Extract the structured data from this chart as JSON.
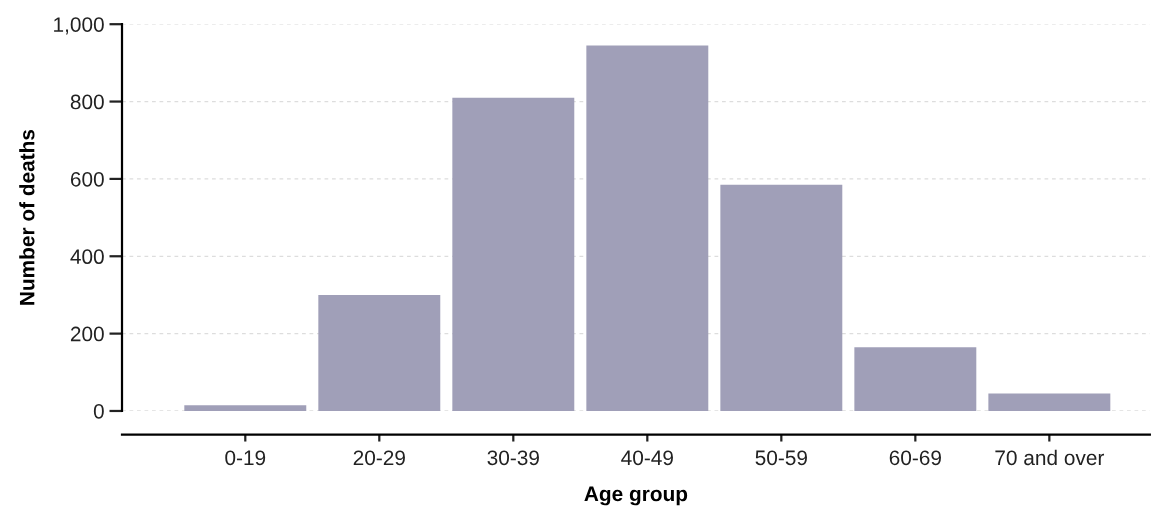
{
  "chart_data": {
    "type": "bar",
    "xlabel": "Age group",
    "ylabel": "Number of deaths",
    "categories": [
      "0-19",
      "20-29",
      "30-39",
      "40-49",
      "50-59",
      "60-69",
      "70 and over"
    ],
    "values": [
      15,
      300,
      810,
      945,
      585,
      165,
      45
    ],
    "color": "#a09fb8",
    "ylim": [
      0,
      1000
    ],
    "yticks": [
      0,
      200,
      400,
      600,
      800,
      {
        "value": 1000,
        "label": "1,000"
      }
    ],
    "grid": "y"
  }
}
